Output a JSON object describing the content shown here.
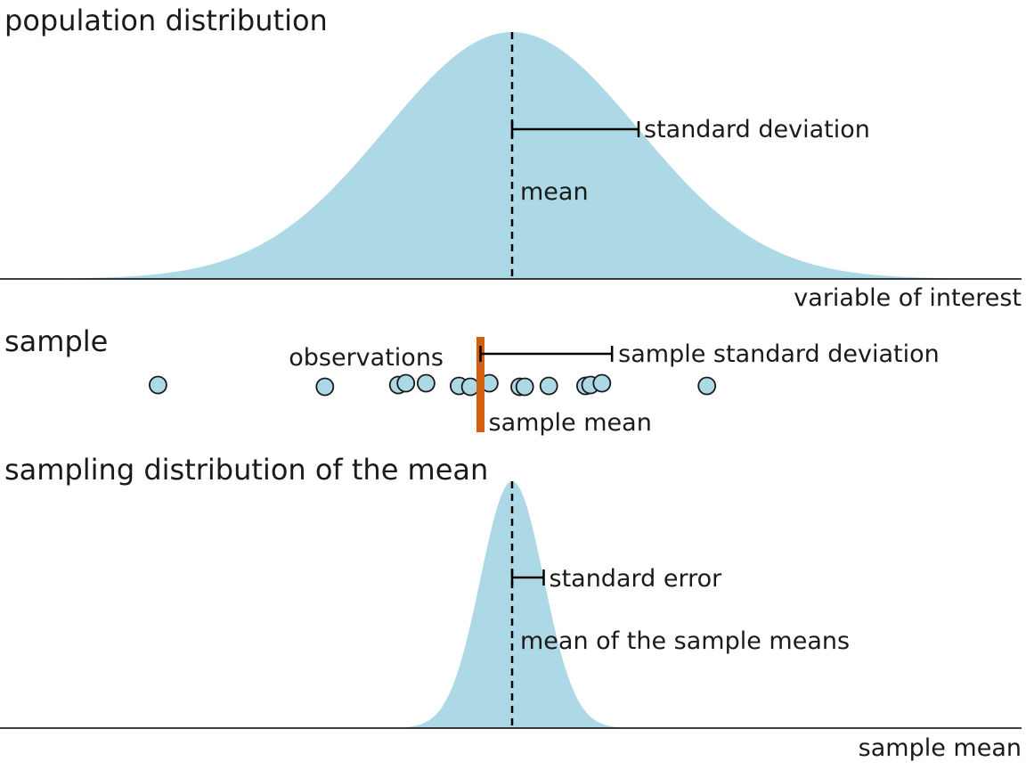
{
  "colors": {
    "density_fill": "#add8e6",
    "sample_mean_bar": "#d35f12",
    "point_fill": "#add8e6",
    "line": "#000000"
  },
  "panels": {
    "population": {
      "title": "population distribution",
      "mean_label": "mean",
      "sd_label": "standard deviation",
      "axis_label": "variable of interest"
    },
    "sample": {
      "title": "sample",
      "observations_label": "observations",
      "sd_label": "sample standard deviation",
      "mean_label": "sample mean"
    },
    "sampling": {
      "title": "sampling distribution of the mean",
      "se_label": "standard error",
      "mean_label": "mean of the sample means",
      "axis_label": "sample mean"
    }
  },
  "chart_data": {
    "type": "area",
    "x_range": [
      -4,
      4
    ],
    "population": {
      "mean": 0,
      "sd": 1
    },
    "sampling": {
      "mean": 0,
      "sd": 0.25
    },
    "sample": {
      "observations": [
        -2.8,
        -1.48,
        -0.9,
        -0.84,
        -0.68,
        -0.42,
        -0.33,
        -0.18,
        0.06,
        0.1,
        0.29,
        0.58,
        0.62,
        0.71,
        1.54
      ],
      "mean": -0.25,
      "sd": 1.04
    }
  }
}
